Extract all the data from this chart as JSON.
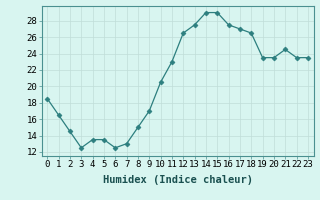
{
  "x": [
    0,
    1,
    2,
    3,
    4,
    5,
    6,
    7,
    8,
    9,
    10,
    11,
    12,
    13,
    14,
    15,
    16,
    17,
    18,
    19,
    20,
    21,
    22,
    23
  ],
  "y": [
    18.5,
    16.5,
    14.5,
    12.5,
    13.5,
    13.5,
    12.5,
    13.0,
    15.0,
    17.0,
    20.5,
    23.0,
    26.5,
    27.5,
    29.0,
    29.0,
    27.5,
    27.0,
    26.5,
    23.5,
    23.5,
    24.5,
    23.5,
    23.5
  ],
  "line_color": "#2d7f7f",
  "marker": "D",
  "marker_size": 2.5,
  "bg_color": "#d8f5f0",
  "grid_color": "#c0ddd8",
  "xlabel": "Humidex (Indice chaleur)",
  "xlim": [
    -0.5,
    23.5
  ],
  "ylim": [
    11.5,
    29.8
  ],
  "yticks": [
    12,
    14,
    16,
    18,
    20,
    22,
    24,
    26,
    28
  ],
  "xtick_labels": [
    "0",
    "1",
    "2",
    "3",
    "4",
    "5",
    "6",
    "7",
    "8",
    "9",
    "10",
    "11",
    "12",
    "13",
    "14",
    "15",
    "16",
    "17",
    "18",
    "19",
    "20",
    "21",
    "22",
    "23"
  ],
  "xlabel_fontsize": 7.5,
  "tick_fontsize": 6.5
}
